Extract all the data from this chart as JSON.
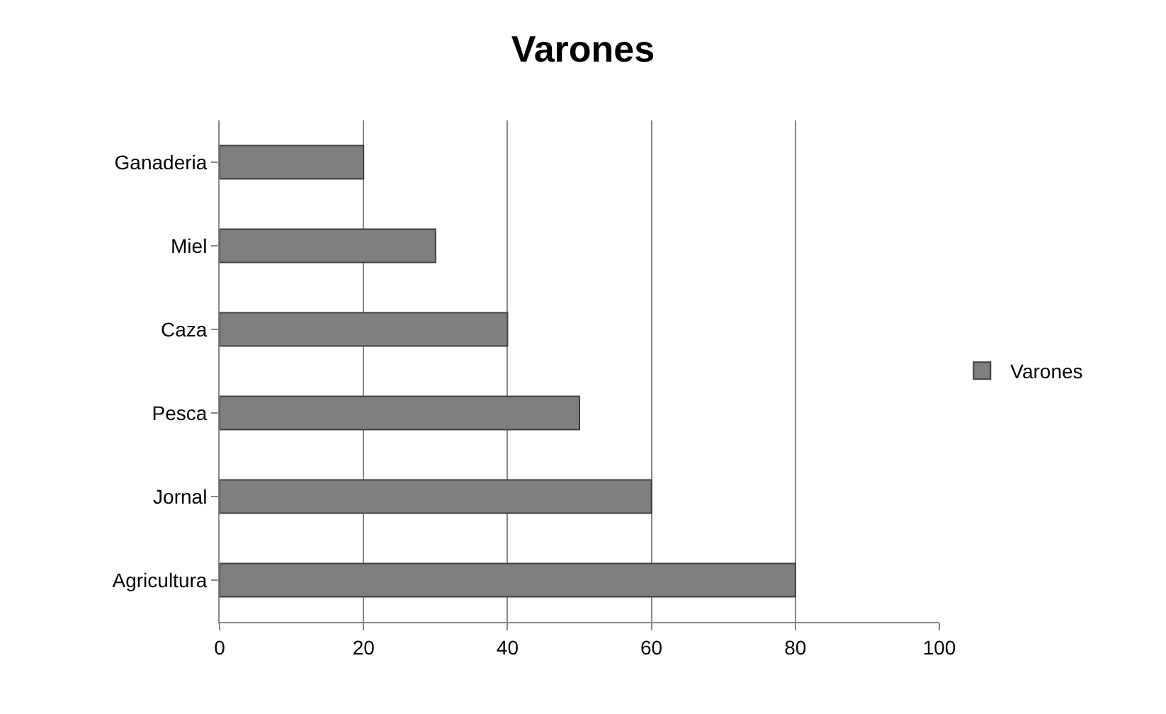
{
  "chart_data": {
    "type": "bar",
    "orientation": "horizontal",
    "title": "Varones",
    "categories": [
      "Ganaderia",
      "Miel",
      "Caza",
      "Pesca",
      "Jornal",
      "Agricultura"
    ],
    "series": [
      {
        "name": "Varones",
        "color": "#7f7f7f",
        "values": [
          20,
          30,
          40,
          50,
          60,
          80
        ]
      }
    ],
    "xlim": [
      0,
      100
    ],
    "xticks": [
      0,
      20,
      40,
      60,
      80,
      100
    ],
    "grid": "x",
    "legend": "right"
  }
}
